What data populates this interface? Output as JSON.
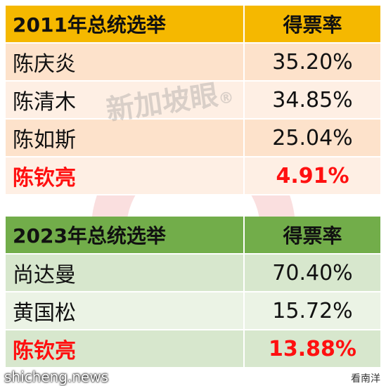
{
  "tables": [
    {
      "header": [
        "2011年总统选举",
        "得票率"
      ],
      "rows": [
        [
          "陈庆炎",
          "35.20%"
        ],
        [
          "陈清木",
          "34.85%"
        ],
        [
          "陈如斯",
          "25.04%"
        ],
        [
          "陈钦亮",
          "4.91%"
        ]
      ],
      "highlight_row": 3
    },
    {
      "header": [
        "2023年总统选举",
        "得票率"
      ],
      "rows": [
        [
          "尚达曼",
          "70.40%"
        ],
        [
          "黄国松",
          "15.72%"
        ],
        [
          "陈钦亮",
          "13.88%"
        ]
      ],
      "highlight_row": 2
    }
  ],
  "watermark": {
    "text": "新加坡眼",
    "mark": "®"
  },
  "footer": {
    "left": "shicheng.news",
    "right": "看南洋"
  }
}
